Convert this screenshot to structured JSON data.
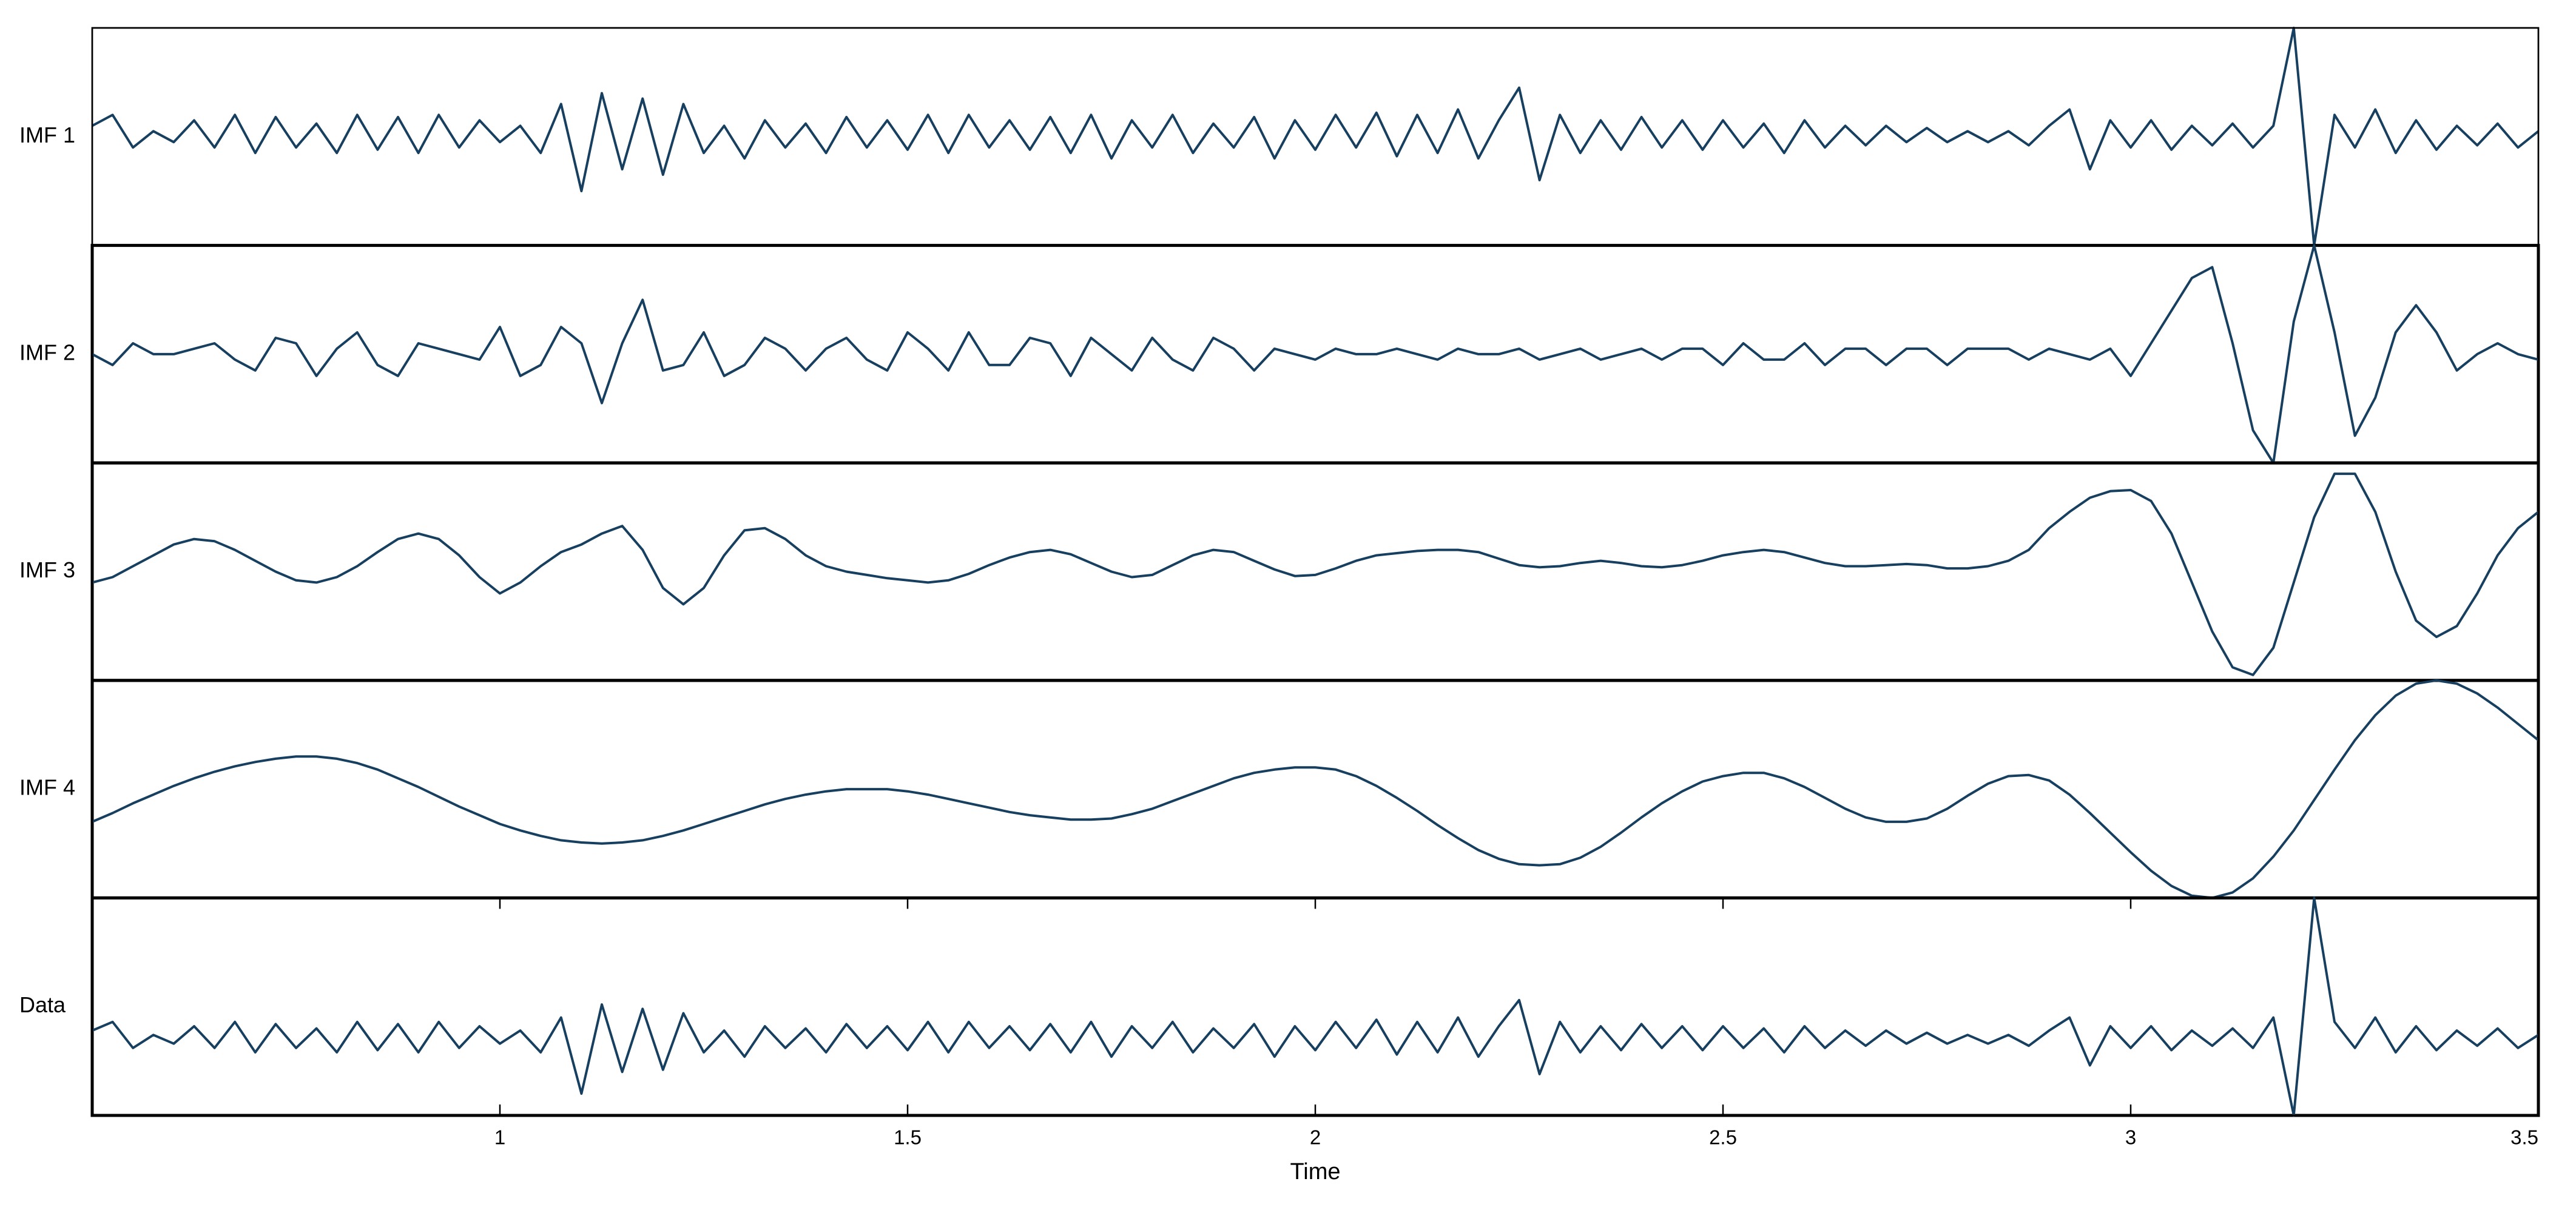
{
  "chart_data": {
    "type": "line",
    "xlabel": "Time",
    "xlim": [
      0.5,
      3.5
    ],
    "xticks": [
      1,
      1.5,
      2,
      2.5,
      3,
      3.5
    ],
    "x": [
      0.5,
      0.525,
      0.55,
      0.575,
      0.6,
      0.625,
      0.65,
      0.675,
      0.7,
      0.725,
      0.75,
      0.775,
      0.8,
      0.825,
      0.85,
      0.875,
      0.9,
      0.925,
      0.95,
      0.975,
      1,
      1.025,
      1.05,
      1.075,
      1.1,
      1.125,
      1.15,
      1.175,
      1.2,
      1.225,
      1.25,
      1.275,
      1.3,
      1.325,
      1.35,
      1.375,
      1.4,
      1.425,
      1.45,
      1.475,
      1.5,
      1.525,
      1.55,
      1.575,
      1.6,
      1.625,
      1.65,
      1.675,
      1.7,
      1.725,
      1.75,
      1.775,
      1.8,
      1.825,
      1.85,
      1.875,
      1.9,
      1.925,
      1.95,
      1.975,
      2,
      2.025,
      2.05,
      2.075,
      2.1,
      2.125,
      2.15,
      2.175,
      2.2,
      2.225,
      2.25,
      2.275,
      2.3,
      2.325,
      2.35,
      2.375,
      2.4,
      2.425,
      2.45,
      2.475,
      2.5,
      2.525,
      2.55,
      2.575,
      2.6,
      2.625,
      2.65,
      2.675,
      2.7,
      2.725,
      2.75,
      2.775,
      2.8,
      2.825,
      2.85,
      2.875,
      2.9,
      2.925,
      2.95,
      2.975,
      3,
      3.025,
      3.05,
      3.075,
      3.1,
      3.125,
      3.15,
      3.175,
      3.2,
      3.225,
      3.25,
      3.275,
      3.3,
      3.325,
      3.35,
      3.375,
      3.4,
      3.425,
      3.45,
      3.475,
      3.5
    ],
    "series": [
      {
        "name": "IMF 1",
        "color": "#173f5f",
        "ylim": [
          -1,
          1
        ],
        "values": [
          0.1,
          0.2,
          -0.1,
          0.05,
          -0.05,
          0.15,
          -0.1,
          0.2,
          -0.15,
          0.18,
          -0.1,
          0.12,
          -0.15,
          0.2,
          -0.12,
          0.18,
          -0.15,
          0.2,
          -0.1,
          0.15,
          -0.05,
          0.1,
          -0.15,
          0.3,
          -0.5,
          0.4,
          -0.3,
          0.35,
          -0.35,
          0.3,
          -0.15,
          0.1,
          -0.2,
          0.15,
          -0.1,
          0.12,
          -0.15,
          0.18,
          -0.1,
          0.15,
          -0.12,
          0.2,
          -0.15,
          0.2,
          -0.1,
          0.15,
          -0.12,
          0.18,
          -0.15,
          0.2,
          -0.2,
          0.15,
          -0.1,
          0.2,
          -0.15,
          0.12,
          -0.1,
          0.18,
          -0.2,
          0.15,
          -0.12,
          0.2,
          -0.1,
          0.22,
          -0.18,
          0.2,
          -0.15,
          0.25,
          -0.2,
          0.15,
          0.45,
          -0.4,
          0.2,
          -0.15,
          0.15,
          -0.12,
          0.18,
          -0.1,
          0.15,
          -0.12,
          0.15,
          -0.1,
          0.12,
          -0.15,
          0.15,
          -0.1,
          0.1,
          -0.08,
          0.1,
          -0.05,
          0.08,
          -0.05,
          0.05,
          -0.05,
          0.05,
          -0.08,
          0.1,
          0.25,
          -0.3,
          0.15,
          -0.1,
          0.15,
          -0.12,
          0.1,
          -0.08,
          0.12,
          -0.1,
          0.1,
          1.0,
          -1.0,
          0.2,
          -0.1,
          0.25,
          -0.15,
          0.15,
          -0.12,
          0.1,
          -0.08,
          0.12,
          -0.1,
          0.05
        ]
      },
      {
        "name": "IMF 2",
        "color": "#173f5f",
        "ylim": [
          -1,
          1
        ],
        "values": [
          0.0,
          -0.1,
          0.1,
          0.0,
          0.0,
          0.05,
          0.1,
          -0.05,
          -0.15,
          0.15,
          0.1,
          -0.2,
          0.05,
          0.2,
          -0.1,
          -0.2,
          0.1,
          0.05,
          0.0,
          -0.05,
          0.25,
          -0.2,
          -0.1,
          0.25,
          0.1,
          -0.45,
          0.1,
          0.5,
          -0.15,
          -0.1,
          0.2,
          -0.2,
          -0.1,
          0.15,
          0.05,
          -0.15,
          0.05,
          0.15,
          -0.05,
          -0.15,
          0.2,
          0.05,
          -0.15,
          0.2,
          -0.1,
          -0.1,
          0.15,
          0.1,
          -0.2,
          0.15,
          0.0,
          -0.15,
          0.15,
          -0.05,
          -0.15,
          0.15,
          0.05,
          -0.15,
          0.05,
          0.0,
          -0.05,
          0.05,
          0.0,
          0.0,
          0.05,
          0.0,
          -0.05,
          0.05,
          0.0,
          0.0,
          0.05,
          -0.05,
          0.0,
          0.05,
          -0.05,
          0.0,
          0.05,
          -0.05,
          0.05,
          0.05,
          -0.1,
          0.1,
          -0.05,
          -0.05,
          0.1,
          -0.1,
          0.05,
          0.05,
          -0.1,
          0.05,
          0.05,
          -0.1,
          0.05,
          0.05,
          0.05,
          -0.05,
          0.05,
          0.0,
          -0.05,
          0.05,
          -0.2,
          0.1,
          0.4,
          0.7,
          0.8,
          0.1,
          -0.7,
          -1.0,
          0.3,
          1.0,
          0.2,
          -0.75,
          -0.4,
          0.2,
          0.45,
          0.2,
          -0.15,
          0.0,
          0.1,
          0.0,
          -0.05
        ]
      },
      {
        "name": "IMF 3",
        "color": "#173f5f",
        "ylim": [
          -1,
          1
        ],
        "values": [
          -0.1,
          -0.05,
          0.05,
          0.15,
          0.25,
          0.3,
          0.28,
          0.2,
          0.1,
          0.0,
          -0.08,
          -0.1,
          -0.05,
          0.05,
          0.18,
          0.3,
          0.35,
          0.3,
          0.15,
          -0.05,
          -0.2,
          -0.1,
          0.05,
          0.18,
          0.25,
          0.35,
          0.42,
          0.2,
          -0.15,
          -0.3,
          -0.15,
          0.15,
          0.38,
          0.4,
          0.3,
          0.15,
          0.05,
          0.0,
          -0.03,
          -0.06,
          -0.08,
          -0.1,
          -0.08,
          -0.02,
          0.06,
          0.13,
          0.18,
          0.2,
          0.16,
          0.08,
          0.0,
          -0.05,
          -0.03,
          0.06,
          0.15,
          0.2,
          0.18,
          0.1,
          0.02,
          -0.04,
          -0.03,
          0.03,
          0.1,
          0.15,
          0.17,
          0.19,
          0.2,
          0.2,
          0.18,
          0.12,
          0.06,
          0.04,
          0.05,
          0.08,
          0.1,
          0.08,
          0.05,
          0.04,
          0.06,
          0.1,
          0.15,
          0.18,
          0.2,
          0.18,
          0.13,
          0.08,
          0.05,
          0.05,
          0.06,
          0.07,
          0.06,
          0.03,
          0.03,
          0.05,
          0.1,
          0.2,
          0.4,
          0.55,
          0.68,
          0.74,
          0.75,
          0.65,
          0.35,
          -0.1,
          -0.55,
          -0.88,
          -0.95,
          -0.7,
          -0.1,
          0.5,
          0.9,
          0.9,
          0.55,
          0.0,
          -0.45,
          -0.6,
          -0.5,
          -0.2,
          0.15,
          0.4,
          0.55
        ]
      },
      {
        "name": "IMF 4",
        "color": "#173f5f",
        "ylim": [
          -1,
          1
        ],
        "values": [
          -0.3,
          -0.22,
          -0.13,
          -0.05,
          0.03,
          0.1,
          0.16,
          0.21,
          0.25,
          0.28,
          0.3,
          0.3,
          0.28,
          0.24,
          0.18,
          0.1,
          0.02,
          -0.07,
          -0.16,
          -0.24,
          -0.32,
          -0.38,
          -0.43,
          -0.47,
          -0.49,
          -0.5,
          -0.49,
          -0.47,
          -0.43,
          -0.38,
          -0.32,
          -0.26,
          -0.2,
          -0.14,
          -0.09,
          -0.05,
          -0.02,
          0.0,
          0.0,
          0.0,
          -0.02,
          -0.05,
          -0.09,
          -0.13,
          -0.17,
          -0.21,
          -0.24,
          -0.26,
          -0.28,
          -0.28,
          -0.27,
          -0.23,
          -0.18,
          -0.11,
          -0.04,
          0.03,
          0.1,
          0.15,
          0.18,
          0.2,
          0.2,
          0.18,
          0.12,
          0.03,
          -0.08,
          -0.2,
          -0.33,
          -0.45,
          -0.56,
          -0.64,
          -0.69,
          -0.7,
          -0.69,
          -0.63,
          -0.53,
          -0.4,
          -0.26,
          -0.13,
          -0.02,
          0.07,
          0.12,
          0.15,
          0.15,
          0.1,
          0.02,
          -0.08,
          -0.18,
          -0.26,
          -0.3,
          -0.3,
          -0.27,
          -0.18,
          -0.06,
          0.05,
          0.12,
          0.13,
          0.08,
          -0.05,
          -0.22,
          -0.4,
          -0.58,
          -0.75,
          -0.89,
          -0.98,
          -1.0,
          -0.95,
          -0.82,
          -0.62,
          -0.38,
          -0.1,
          0.18,
          0.45,
          0.68,
          0.86,
          0.97,
          1.0,
          0.97,
          0.88,
          0.75,
          0.6,
          0.45
        ]
      },
      {
        "name": "Data",
        "color": "#173f5f",
        "ylim": [
          -1,
          1
        ],
        "values": [
          -0.22,
          -0.14,
          -0.38,
          -0.26,
          -0.34,
          -0.18,
          -0.38,
          -0.14,
          -0.42,
          -0.16,
          -0.38,
          -0.2,
          -0.42,
          -0.14,
          -0.4,
          -0.16,
          -0.42,
          -0.14,
          -0.38,
          -0.18,
          -0.34,
          -0.22,
          -0.42,
          -0.1,
          -0.8,
          0.02,
          -0.6,
          -0.02,
          -0.58,
          -0.06,
          -0.42,
          -0.22,
          -0.46,
          -0.18,
          -0.38,
          -0.2,
          -0.42,
          -0.16,
          -0.38,
          -0.18,
          -0.4,
          -0.14,
          -0.42,
          -0.14,
          -0.38,
          -0.18,
          -0.4,
          -0.16,
          -0.42,
          -0.14,
          -0.46,
          -0.18,
          -0.38,
          -0.14,
          -0.42,
          -0.2,
          -0.38,
          -0.16,
          -0.46,
          -0.18,
          -0.4,
          -0.14,
          -0.38,
          -0.12,
          -0.44,
          -0.14,
          -0.42,
          -0.1,
          -0.46,
          -0.18,
          0.06,
          -0.62,
          -0.14,
          -0.42,
          -0.18,
          -0.4,
          -0.16,
          -0.38,
          -0.18,
          -0.4,
          -0.18,
          -0.38,
          -0.2,
          -0.42,
          -0.18,
          -0.38,
          -0.22,
          -0.36,
          -0.22,
          -0.34,
          -0.24,
          -0.34,
          -0.26,
          -0.34,
          -0.26,
          -0.36,
          -0.22,
          -0.1,
          -0.54,
          -0.18,
          -0.38,
          -0.18,
          -0.4,
          -0.22,
          -0.36,
          -0.2,
          -0.38,
          -0.1,
          -1.0,
          1.0,
          -0.14,
          -0.38,
          -0.1,
          -0.42,
          -0.18,
          -0.4,
          -0.22,
          -0.36,
          -0.2,
          -0.38,
          -0.26
        ]
      }
    ]
  }
}
